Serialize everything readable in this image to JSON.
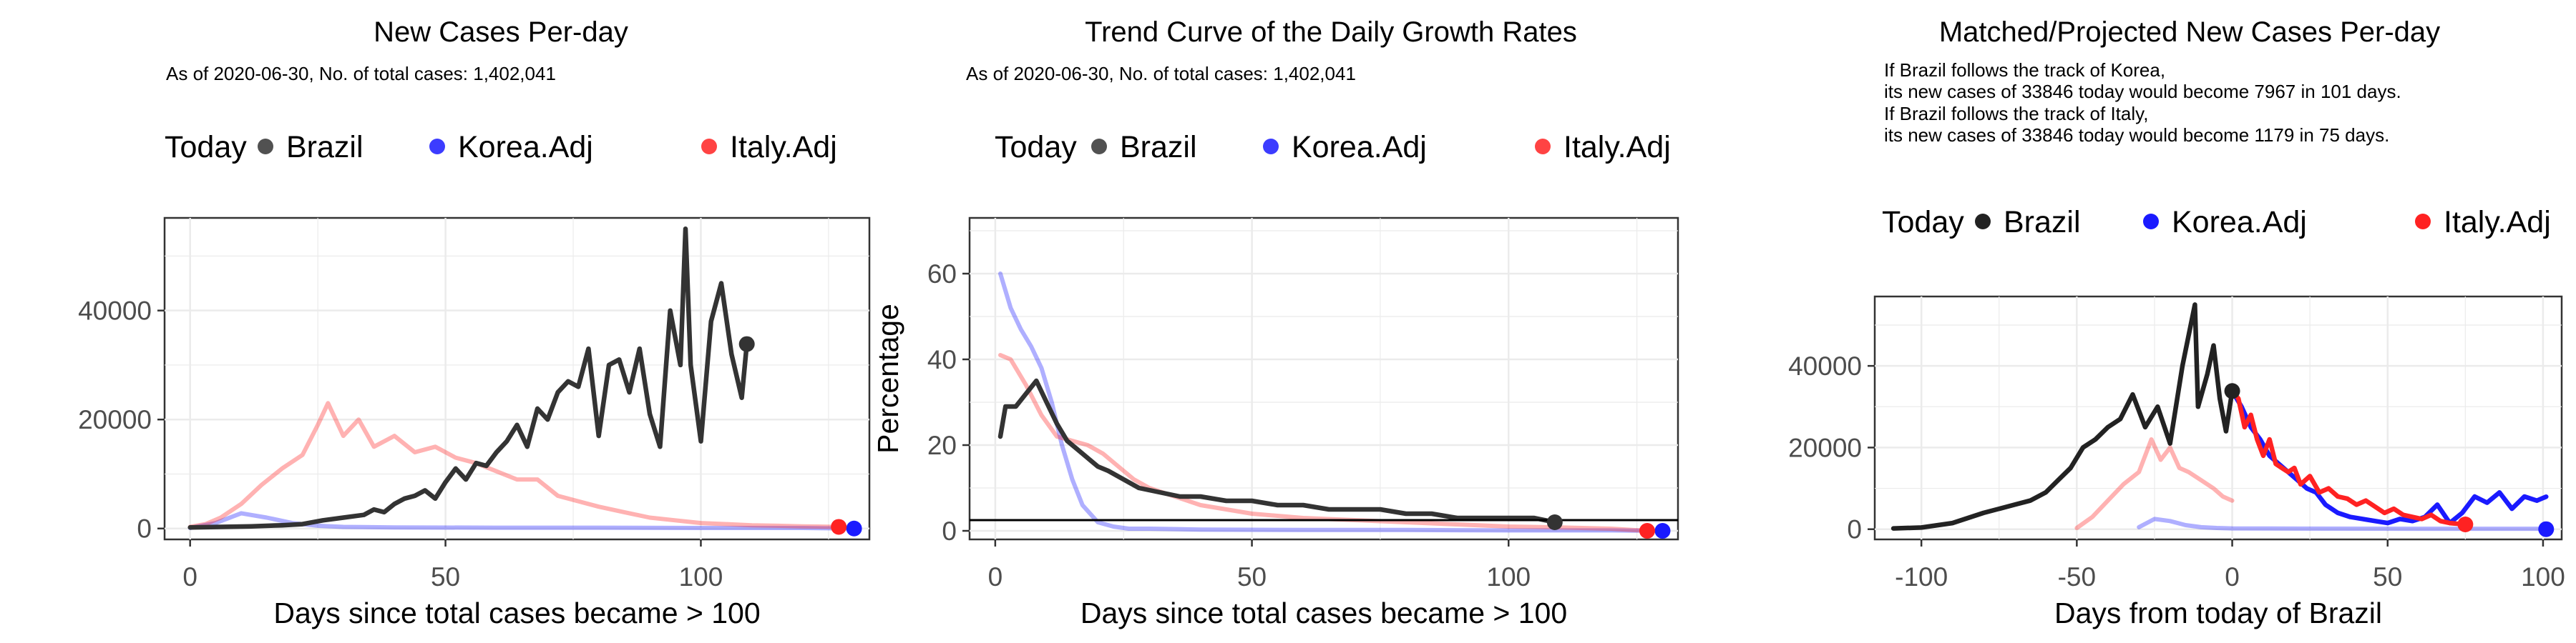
{
  "colors": {
    "brazil": "#333333",
    "korea": "#1a1aff",
    "italy": "#ff2222"
  },
  "chart_data": [
    {
      "type": "line",
      "title": "New Cases Per-day",
      "subtitle": [
        "As of 2020-06-30, No. of total cases: 1,402,041"
      ],
      "xlabel": "Days since total cases became > 100",
      "ylabel": "",
      "xlim": [
        -5,
        133
      ],
      "ylim": [
        -2000,
        57000
      ],
      "xticks": [
        0,
        50,
        100
      ],
      "yticks": [
        0,
        20000,
        40000
      ],
      "legend": {
        "position": "top",
        "title": "Today",
        "entries": [
          "Brazil",
          "Korea.Adj",
          "Italy.Adj"
        ]
      },
      "grid": true,
      "series": [
        {
          "name": "Brazil",
          "color": "#333333",
          "alpha": 1,
          "today": [
            109,
            33846
          ],
          "x": [
            0,
            6,
            12,
            18,
            22,
            26,
            30,
            34,
            36,
            38,
            40,
            42,
            44,
            46,
            48,
            50,
            52,
            54,
            56,
            58,
            60,
            62,
            64,
            66,
            68,
            70,
            72,
            74,
            76,
            78,
            80,
            82,
            84,
            86,
            88,
            90,
            92,
            94,
            96,
            97,
            98,
            100,
            102,
            104,
            106,
            108,
            109
          ],
          "y": [
            200,
            300,
            400,
            600,
            800,
            1500,
            2000,
            2500,
            3500,
            3000,
            4500,
            5500,
            6000,
            7000,
            5500,
            8500,
            11000,
            9000,
            12000,
            11500,
            14000,
            16000,
            19000,
            15000,
            22000,
            20000,
            25000,
            27000,
            26000,
            33000,
            17000,
            30000,
            31000,
            25000,
            33000,
            21000,
            15000,
            40000,
            30000,
            55000,
            30000,
            16000,
            38000,
            45000,
            32000,
            24000,
            33846
          ]
        },
        {
          "name": "Korea.Adj",
          "color": "#1a1aff",
          "alpha": 0.35,
          "today": [
            130,
            0
          ],
          "x": [
            0,
            5,
            10,
            15,
            20,
            25,
            30,
            40,
            60,
            80,
            100,
            120,
            130
          ],
          "y": [
            100,
            1000,
            2800,
            2000,
            1000,
            500,
            300,
            200,
            150,
            150,
            100,
            100,
            0
          ]
        },
        {
          "name": "Italy.Adj",
          "color": "#ff2222",
          "alpha": 0.35,
          "today": [
            127,
            300
          ],
          "x": [
            0,
            3,
            6,
            10,
            14,
            18,
            22,
            25,
            27,
            30,
            33,
            36,
            40,
            44,
            48,
            52,
            56,
            60,
            64,
            68,
            72,
            76,
            80,
            85,
            90,
            95,
            100,
            105,
            110,
            115,
            120,
            127
          ],
          "y": [
            300,
            800,
            2000,
            4500,
            8000,
            11000,
            13500,
            19000,
            23000,
            17000,
            20000,
            15000,
            17000,
            14000,
            15000,
            13000,
            12000,
            10500,
            9000,
            9000,
            6000,
            5000,
            4000,
            3000,
            2000,
            1500,
            1000,
            800,
            600,
            500,
            400,
            300
          ]
        }
      ]
    },
    {
      "type": "line",
      "title": "Trend Curve of the Daily Growth Rates",
      "subtitle": [
        "As of 2020-06-30, No. of total cases: 1,402,041"
      ],
      "xlabel": "Days since total cases became > 100",
      "ylabel": "Percentage",
      "xlim": [
        -5,
        133
      ],
      "ylim": [
        -2,
        73
      ],
      "xticks": [
        0,
        50,
        100
      ],
      "yticks": [
        0,
        20,
        40,
        60
      ],
      "hline": 2.5,
      "legend": {
        "position": "top",
        "title": "Today",
        "entries": [
          "Brazil",
          "Korea.Adj",
          "Italy.Adj"
        ]
      },
      "grid": true,
      "series": [
        {
          "name": "Brazil",
          "color": "#333333",
          "alpha": 1,
          "today": [
            109,
            2
          ],
          "x": [
            1,
            2,
            4,
            6,
            8,
            10,
            12,
            14,
            16,
            18,
            20,
            22,
            25,
            28,
            32,
            36,
            40,
            45,
            50,
            55,
            60,
            65,
            70,
            75,
            80,
            85,
            90,
            95,
            100,
            105,
            109
          ],
          "y": [
            22,
            29,
            29,
            32,
            35,
            30,
            25,
            21,
            19,
            17,
            15,
            14,
            12,
            10,
            9,
            8,
            8,
            7,
            7,
            6,
            6,
            5,
            5,
            5,
            4,
            4,
            3,
            3,
            3,
            3,
            2
          ]
        },
        {
          "name": "Korea.Adj",
          "color": "#1a1aff",
          "alpha": 0.35,
          "today": [
            130,
            0
          ],
          "x": [
            1,
            3,
            5,
            7,
            9,
            11,
            13,
            15,
            17,
            20,
            23,
            26,
            30,
            40,
            60,
            80,
            100,
            120,
            130
          ],
          "y": [
            60,
            52,
            47,
            43,
            38,
            30,
            20,
            12,
            6,
            2,
            1,
            0.5,
            0.5,
            0.3,
            0.2,
            0.2,
            0.1,
            0.1,
            0
          ]
        },
        {
          "name": "Italy.Adj",
          "color": "#ff2222",
          "alpha": 0.35,
          "today": [
            127,
            0
          ],
          "x": [
            1,
            3,
            6,
            9,
            12,
            15,
            18,
            21,
            24,
            27,
            30,
            35,
            40,
            45,
            50,
            60,
            70,
            80,
            90,
            100,
            110,
            120,
            127
          ],
          "y": [
            41,
            40,
            34,
            27,
            22,
            21,
            20,
            18,
            15,
            12,
            10,
            8,
            6,
            5,
            4,
            3,
            2.5,
            2,
            1.5,
            1,
            0.8,
            0.5,
            0
          ]
        }
      ]
    },
    {
      "type": "line",
      "title": "Matched/Projected New Cases Per-day",
      "subtitle": [
        "If Brazil follows the track of Korea,",
        "its new cases of 33846 today would become 7967 in 101 days.",
        "If Brazil follows the track of Italy,",
        "its new cases of 33846 today would become 1179 in 75 days."
      ],
      "xlabel": "Days from today of Brazil",
      "ylabel": "",
      "xlim": [
        -115,
        106
      ],
      "ylim": [
        -2500,
        57000
      ],
      "xticks": [
        -100,
        -50,
        0,
        50,
        100
      ],
      "yticks": [
        0,
        20000,
        40000
      ],
      "legend": {
        "position": "top",
        "title": "Today",
        "entries": [
          "Brazil",
          "Korea.Adj",
          "Italy.Adj"
        ]
      },
      "grid": true,
      "series": [
        {
          "name": "Brazil",
          "color": "#222222",
          "alpha": 1,
          "today": [
            0,
            33846
          ],
          "x": [
            -109,
            -100,
            -90,
            -80,
            -70,
            -65,
            -60,
            -56,
            -52,
            -48,
            -44,
            -40,
            -36,
            -32,
            -28,
            -24,
            -20,
            -16,
            -12,
            -11,
            -8,
            -6,
            -4,
            -2,
            0
          ],
          "y": [
            200,
            400,
            1500,
            4000,
            6000,
            7000,
            9000,
            12000,
            15000,
            20000,
            22000,
            25000,
            27000,
            33000,
            25000,
            30000,
            21000,
            40000,
            55000,
            30000,
            38000,
            45000,
            32000,
            24000,
            33846
          ]
        },
        {
          "name": "Korea.Adj",
          "color": "#1a1aff",
          "alpha": 1,
          "today": [
            101,
            0
          ],
          "x": [
            0,
            3,
            6,
            9,
            12,
            15,
            18,
            21,
            24,
            27,
            30,
            34,
            38,
            42,
            46,
            50,
            54,
            58,
            62,
            66,
            70,
            74,
            78,
            82,
            86,
            90,
            94,
            98,
            101
          ],
          "y": [
            33846,
            30000,
            25000,
            22000,
            18000,
            16000,
            14000,
            12000,
            10000,
            9000,
            6000,
            4000,
            3000,
            2500,
            2000,
            1500,
            2500,
            2000,
            3000,
            6000,
            1500,
            4000,
            8000,
            6500,
            9000,
            5000,
            8000,
            7000,
            7967
          ]
        },
        {
          "name": "Italy.Adj",
          "color": "#ff2222",
          "alpha": 1,
          "today": [
            75,
            1179
          ],
          "x": [
            0,
            2,
            4,
            6,
            8,
            10,
            12,
            14,
            16,
            18,
            20,
            22,
            25,
            28,
            31,
            34,
            37,
            40,
            43,
            46,
            49,
            52,
            55,
            58,
            61,
            64,
            67,
            70,
            73,
            75
          ],
          "y": [
            33846,
            32000,
            25000,
            28000,
            22000,
            18000,
            22000,
            16000,
            15000,
            14000,
            15000,
            11000,
            13000,
            9000,
            10000,
            8000,
            7500,
            6000,
            7000,
            5500,
            4000,
            5000,
            3500,
            3000,
            2500,
            3500,
            2000,
            1500,
            1300,
            1179
          ]
        },
        {
          "name": "Korea.Adj history",
          "color": "#1a1aff",
          "alpha": 0.35,
          "x": [
            -30,
            -25,
            -20,
            -15,
            -10,
            -5,
            0,
            20,
            60,
            100
          ],
          "y": [
            500,
            2500,
            2000,
            1000,
            500,
            300,
            200,
            150,
            100,
            100
          ]
        },
        {
          "name": "Italy.Adj history",
          "color": "#ff2222",
          "alpha": 0.35,
          "x": [
            -50,
            -45,
            -40,
            -35,
            -30,
            -26,
            -23,
            -20,
            -17,
            -14,
            -10,
            -6,
            -3,
            0
          ],
          "y": [
            300,
            3000,
            7000,
            11000,
            14000,
            22000,
            17000,
            20000,
            15000,
            14000,
            12000,
            10000,
            8000,
            7000
          ]
        }
      ]
    }
  ]
}
